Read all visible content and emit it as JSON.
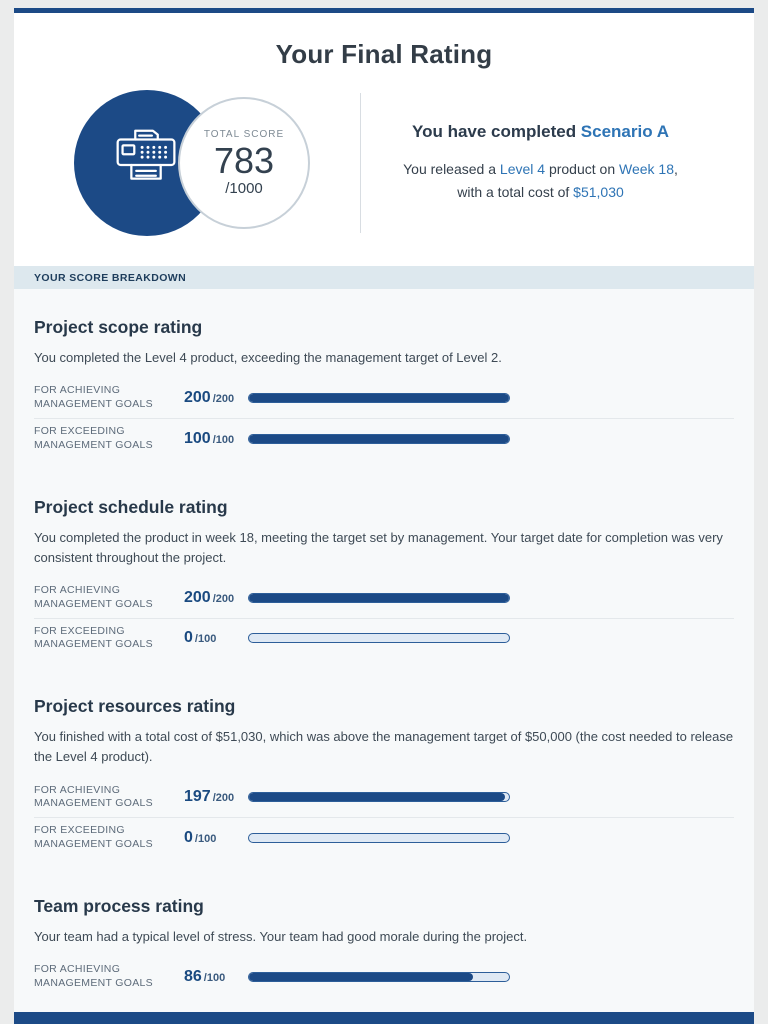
{
  "colors": {
    "navy": "#1c4a86",
    "accent": "#2e74b5"
  },
  "header": {
    "title": "Your Final Rating"
  },
  "summary": {
    "badge": {
      "total_score_label": "TOTAL SCORE",
      "score": "783",
      "max": "/1000",
      "icon": "printer-icon"
    },
    "completed": {
      "prefix": "You have completed ",
      "scenario": "Scenario A"
    },
    "result": {
      "part1": "You released a ",
      "level": "Level 4",
      "part2": " product on ",
      "week": "Week 18",
      "part3": ",",
      "part4": "with a total cost of ",
      "cost": "$51,030"
    }
  },
  "breakdown": {
    "header": "YOUR SCORE BREAKDOWN"
  },
  "sections": [
    {
      "heading": "Project scope rating",
      "description": "You completed the Level 4 product, exceeding the management target of Level 2.",
      "rows": [
        {
          "label1": "FOR ACHIEVING",
          "label2": "MANAGEMENT GOALS",
          "score": "200",
          "max": "/200",
          "percent": 100
        },
        {
          "label1": "FOR EXCEEDING",
          "label2": "MANAGEMENT GOALS",
          "score": "100",
          "max": "/100",
          "percent": 100
        }
      ]
    },
    {
      "heading": "Project schedule rating",
      "description": "You completed the product in week 18, meeting the target set by management. Your target date for completion was very consistent throughout the project.",
      "rows": [
        {
          "label1": "FOR ACHIEVING",
          "label2": "MANAGEMENT GOALS",
          "score": "200",
          "max": "/200",
          "percent": 100
        },
        {
          "label1": "FOR EXCEEDING",
          "label2": "MANAGEMENT GOALS",
          "score": "0",
          "max": "/100",
          "percent": 0
        }
      ]
    },
    {
      "heading": "Project resources rating",
      "description": "You finished with a total cost of $51,030, which was above the management target of $50,000 (the cost needed to release the Level 4 product).",
      "rows": [
        {
          "label1": "FOR ACHIEVING",
          "label2": "MANAGEMENT GOALS",
          "score": "197",
          "max": "/200",
          "percent": 98.5
        },
        {
          "label1": "FOR EXCEEDING",
          "label2": "MANAGEMENT GOALS",
          "score": "0",
          "max": "/100",
          "percent": 0
        }
      ]
    },
    {
      "heading": "Team process rating",
      "description": "Your team had a typical level of stress. Your team had good morale during the project.",
      "rows": [
        {
          "label1": "FOR ACHIEVING",
          "label2": "MANAGEMENT GOALS",
          "score": "86",
          "max": "/100",
          "percent": 86
        }
      ]
    }
  ]
}
